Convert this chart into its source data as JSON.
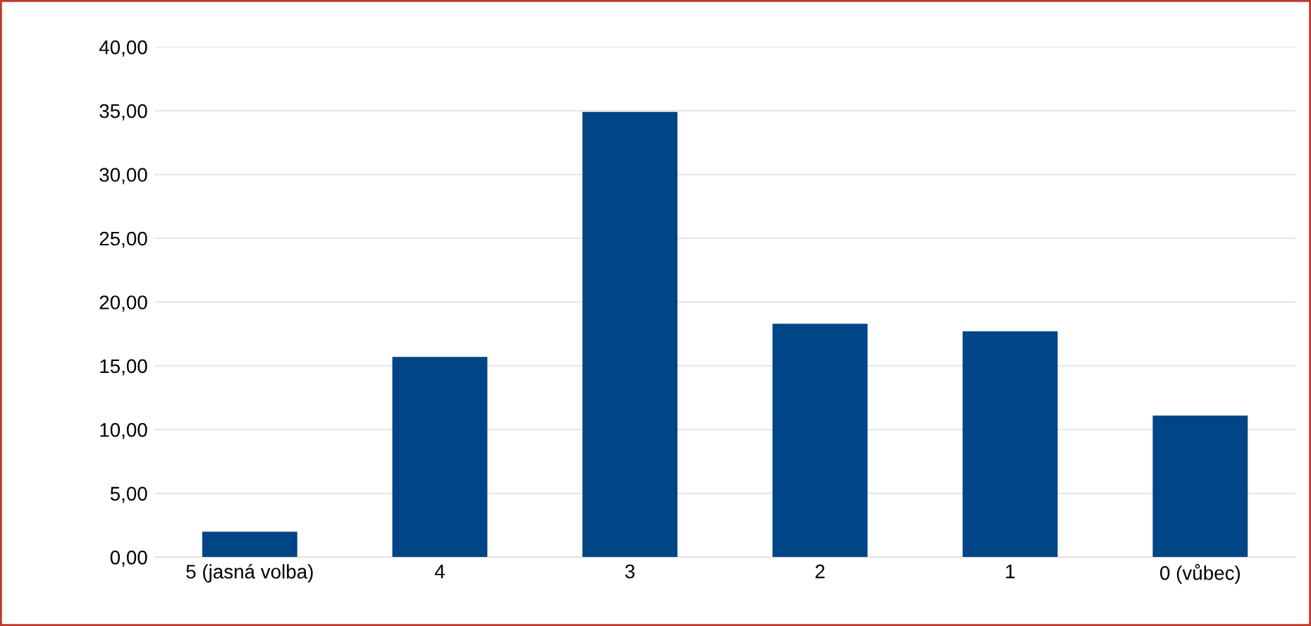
{
  "chart_data": {
    "type": "bar",
    "categories": [
      "5 (jasná volba)",
      "4",
      "3",
      "2",
      "1",
      "0 (vůbec)"
    ],
    "values": [
      2.0,
      15.7,
      34.9,
      18.3,
      17.7,
      11.1
    ],
    "color": "#004586",
    "ylim": [
      0,
      40
    ],
    "yticks": [
      {
        "value": 0,
        "label": "0,00"
      },
      {
        "value": 5,
        "label": "5,00"
      },
      {
        "value": 10,
        "label": "10,00"
      },
      {
        "value": 15,
        "label": "15,00"
      },
      {
        "value": 20,
        "label": "20,00"
      },
      {
        "value": 25,
        "label": "25,00"
      },
      {
        "value": 30,
        "label": "30,00"
      },
      {
        "value": 35,
        "label": "35,00"
      },
      {
        "value": 40,
        "label": "40,00"
      }
    ],
    "grid": "y"
  }
}
